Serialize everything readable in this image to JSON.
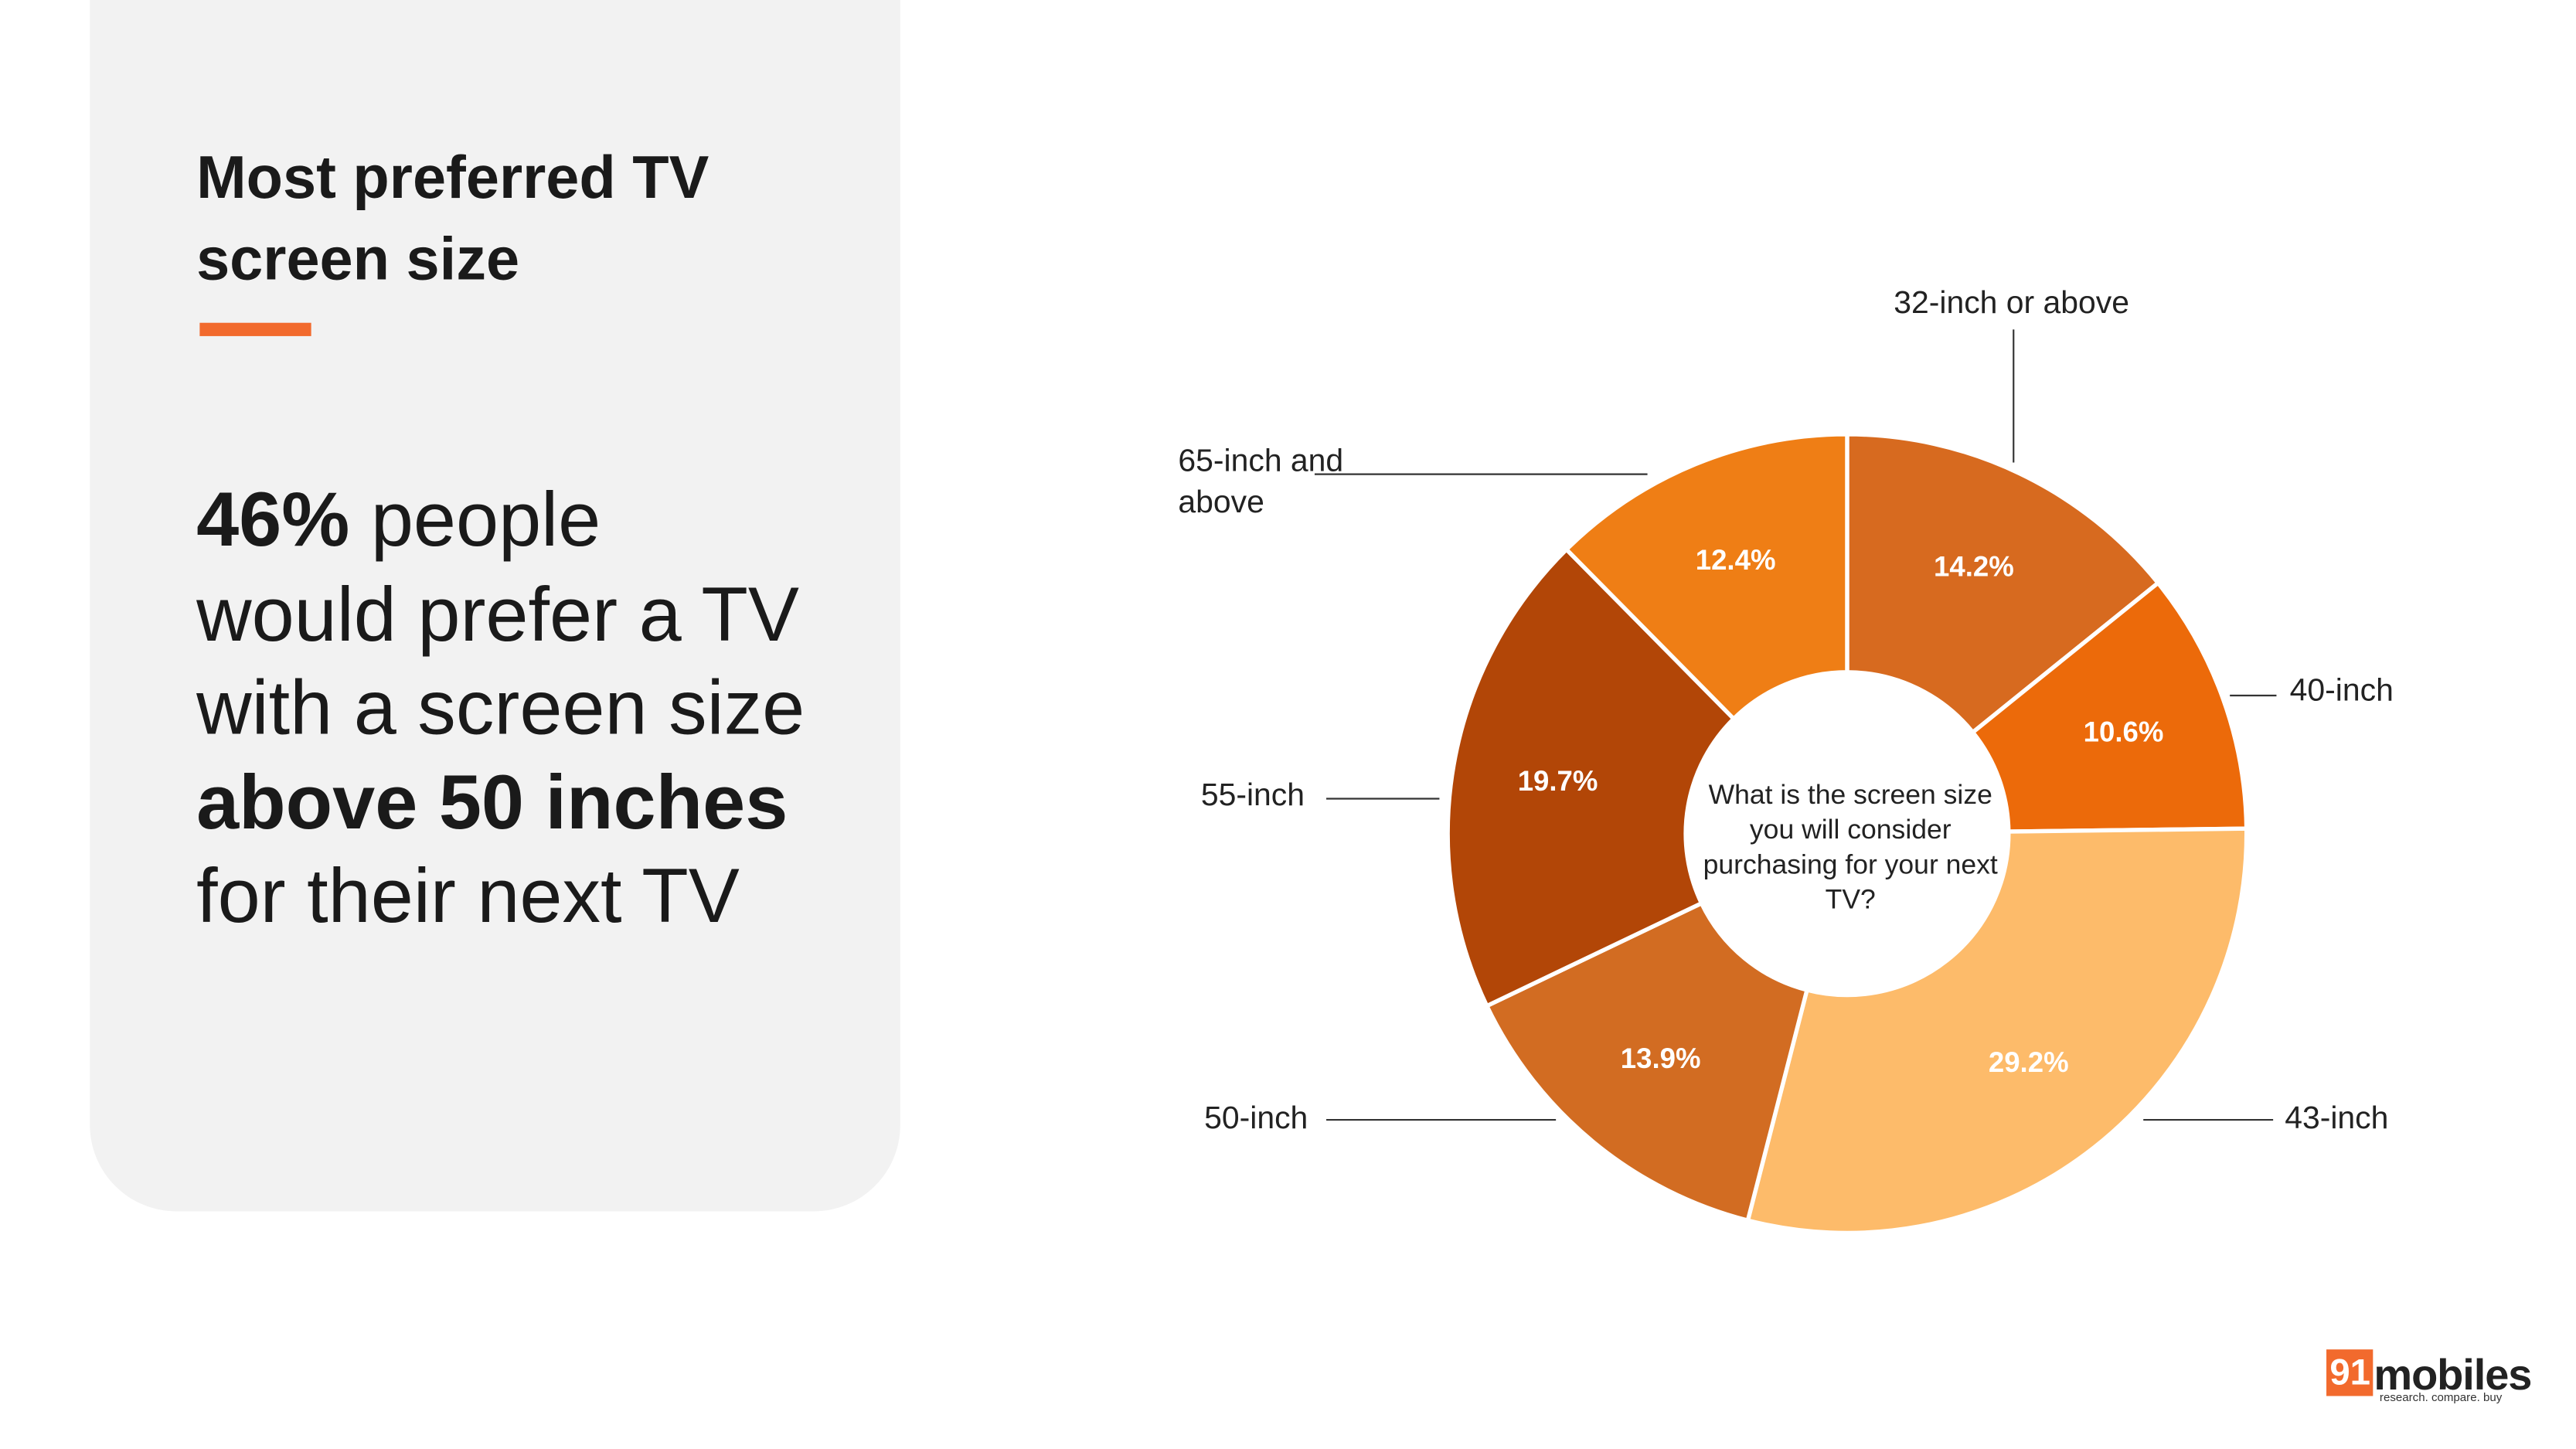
{
  "panel": {
    "title": "Most preferred TV screen size",
    "body": [
      {
        "text": "46%",
        "bold": true
      },
      {
        "text": " people would prefer a TV with a screen size ",
        "bold": false
      },
      {
        "text": "above 50 inches",
        "bold": true
      },
      {
        "text": " for their next TV",
        "bold": false
      }
    ]
  },
  "chart_data": {
    "type": "donut",
    "center_label": "What is the screen size you will consider purchasing for your next TV?",
    "categories": [
      "32-inch or above",
      "40-inch",
      "43-inch",
      "50-inch",
      "55-inch",
      "65-inch and above"
    ],
    "values": [
      14.2,
      10.6,
      29.2,
      13.9,
      19.7,
      12.4
    ],
    "value_labels": [
      "14.2%",
      "10.6%",
      "29.2%",
      "13.9%",
      "19.7%",
      "12.4%"
    ],
    "colors": [
      "#d76a1f",
      "#ec6a0a",
      "#fdbb6a",
      "#d26c22",
      "#b24607",
      "#ef7e15"
    ]
  },
  "logo": {
    "mark": "91",
    "name": "mobiles",
    "tagline": "research. compare. buy"
  }
}
